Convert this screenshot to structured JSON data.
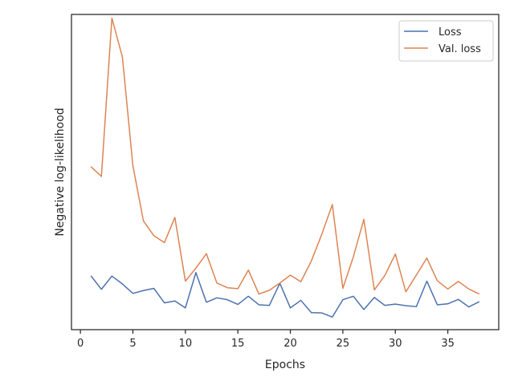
{
  "chart_data": {
    "type": "line",
    "title": "",
    "xlabel": "Epochs",
    "ylabel": "Negative log-likelihood",
    "xlim": [
      -0.85,
      39.85
    ],
    "ylim": [
      0,
      1
    ],
    "xticks": [
      0,
      5,
      10,
      15,
      20,
      25,
      30,
      35
    ],
    "yticks": [],
    "grid": false,
    "legend": "top-right",
    "x": [
      1,
      2,
      3,
      4,
      5,
      6,
      7,
      8,
      9,
      10,
      11,
      12,
      13,
      14,
      15,
      16,
      17,
      18,
      19,
      20,
      21,
      22,
      23,
      24,
      25,
      26,
      27,
      28,
      29,
      30,
      31,
      32,
      33,
      34,
      35,
      36,
      37,
      38
    ],
    "series": [
      {
        "name": "Loss",
        "color": "#4c72b0",
        "values": [
          0.171,
          0.128,
          0.17,
          0.145,
          0.115,
          0.124,
          0.131,
          0.085,
          0.091,
          0.069,
          0.181,
          0.087,
          0.101,
          0.095,
          0.08,
          0.106,
          0.079,
          0.077,
          0.147,
          0.069,
          0.093,
          0.054,
          0.053,
          0.04,
          0.095,
          0.106,
          0.064,
          0.102,
          0.077,
          0.081,
          0.076,
          0.073,
          0.154,
          0.079,
          0.082,
          0.096,
          0.072,
          0.089
        ]
      },
      {
        "name": "Val. loss",
        "color": "#dd8452",
        "values": [
          0.517,
          0.486,
          0.988,
          0.865,
          0.52,
          0.345,
          0.298,
          0.276,
          0.356,
          0.154,
          0.195,
          0.241,
          0.148,
          0.133,
          0.13,
          0.189,
          0.113,
          0.125,
          0.148,
          0.173,
          0.152,
          0.218,
          0.303,
          0.397,
          0.131,
          0.231,
          0.35,
          0.126,
          0.172,
          0.24,
          0.12,
          0.173,
          0.227,
          0.155,
          0.129,
          0.153,
          0.129,
          0.113
        ]
      }
    ]
  }
}
